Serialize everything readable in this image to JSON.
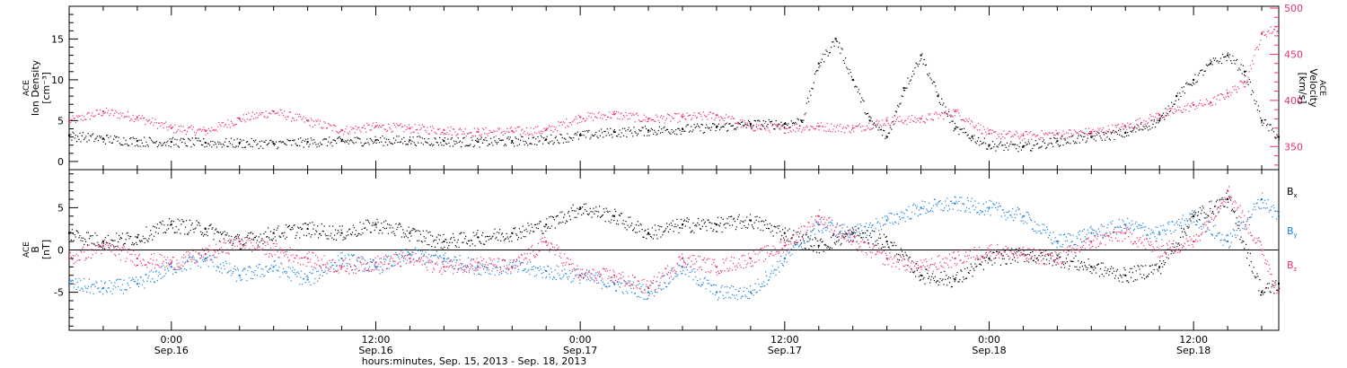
{
  "chart_data": [
    {
      "type": "scatter",
      "panel": "top",
      "ylabel": "ACE Ion Density [cm⁻³]",
      "ylabel_lines": [
        "ACE",
        "Ion Density",
        "[cm⁻³]"
      ],
      "y2label": "ACE Velocity [km/s]",
      "y2label_lines": [
        "ACE",
        "Velocity",
        "[km/s]"
      ],
      "ylim": [
        -1,
        19
      ],
      "yticks": [
        0,
        5,
        10,
        15
      ],
      "y2lim": [
        325,
        502
      ],
      "y2ticks": [
        350,
        400,
        450,
        500
      ],
      "xlim_hours": [
        -6,
        65
      ],
      "colors": {
        "density": "#000000",
        "velocity": "#e8336a"
      },
      "series": [
        {
          "name": "Density",
          "axis": "left",
          "x_hours": [
            -6,
            -4,
            -2,
            0,
            2,
            4,
            6,
            8,
            10,
            12,
            14,
            16,
            18,
            20,
            22,
            24,
            26,
            28,
            30,
            32,
            34,
            36,
            37,
            38,
            39,
            40,
            41,
            42,
            43,
            44,
            45,
            46,
            47,
            48,
            50,
            52,
            54,
            56,
            58,
            59,
            60,
            61,
            62,
            63,
            64,
            65
          ],
          "values": [
            3.2,
            2.8,
            2.5,
            2.4,
            2.3,
            2.3,
            2.2,
            2.4,
            2.5,
            2.6,
            2.6,
            2.5,
            2.4,
            2.5,
            2.7,
            3.2,
            3.6,
            3.8,
            4.0,
            4.2,
            4.6,
            4.6,
            5.0,
            12.0,
            15.0,
            10.0,
            5.0,
            3.0,
            9.0,
            13.0,
            8.0,
            4.0,
            3.0,
            2.0,
            1.8,
            2.5,
            3.0,
            3.5,
            5.0,
            8.0,
            10.0,
            12.0,
            13.0,
            11.0,
            5.0,
            3.0
          ]
        },
        {
          "name": "Velocity",
          "axis": "right",
          "x_hours": [
            -6,
            -4,
            -2,
            0,
            2,
            4,
            6,
            8,
            10,
            12,
            14,
            16,
            18,
            20,
            22,
            24,
            26,
            28,
            30,
            32,
            34,
            36,
            38,
            40,
            42,
            44,
            46,
            48,
            50,
            52,
            54,
            56,
            58,
            60,
            61,
            62,
            63,
            64,
            65
          ],
          "values": [
            378,
            388,
            382,
            370,
            367,
            380,
            388,
            378,
            368,
            372,
            370,
            368,
            366,
            367,
            368,
            382,
            385,
            380,
            382,
            384,
            372,
            370,
            372,
            370,
            378,
            380,
            388,
            364,
            362,
            364,
            366,
            372,
            384,
            395,
            398,
            408,
            420,
            472,
            480
          ]
        }
      ]
    },
    {
      "type": "scatter",
      "panel": "bottom",
      "ylabel": "ACE B [nT]",
      "ylabel_lines": [
        "ACE",
        "B",
        "[nT]"
      ],
      "ylim": [
        -9.5,
        9.5
      ],
      "yticks": [
        -5,
        0,
        5
      ],
      "xlim_hours": [
        -6,
        65
      ],
      "xticks": [
        {
          "hour": 0,
          "time": "0:00",
          "date": "Sep.16"
        },
        {
          "hour": 12,
          "time": "12:00",
          "date": "Sep.16"
        },
        {
          "hour": 24,
          "time": "0:00",
          "date": "Sep.17"
        },
        {
          "hour": 36,
          "time": "12:00",
          "date": "Sep.17"
        },
        {
          "hour": 48,
          "time": "0:00",
          "date": "Sep.18"
        },
        {
          "hour": 60,
          "time": "12:00",
          "date": "Sep.18"
        }
      ],
      "xlabel": "hours:minutes, Sep. 15, 2013 - Sep. 18, 2013",
      "colors": {
        "Bx": "#000000",
        "By": "#1a80d9",
        "Bz": "#e8336a"
      },
      "legend": [
        "Bx",
        "By",
        "Bz"
      ],
      "series": [
        {
          "name": "Bx",
          "x_hours": [
            -6,
            -4,
            -2,
            0,
            2,
            4,
            6,
            8,
            10,
            12,
            14,
            16,
            18,
            20,
            22,
            24,
            26,
            28,
            30,
            32,
            34,
            36,
            38,
            40,
            42,
            44,
            46,
            48,
            50,
            52,
            54,
            56,
            58,
            60,
            62,
            64,
            65
          ],
          "values": [
            2.0,
            1.0,
            1.5,
            3.0,
            2.5,
            1.0,
            2.0,
            2.5,
            2.0,
            3.0,
            2.0,
            1.0,
            1.5,
            2.0,
            3.0,
            5.0,
            4.0,
            2.0,
            3.0,
            3.0,
            3.5,
            2.0,
            0.5,
            2.0,
            1.0,
            -3.0,
            -3.5,
            -1.0,
            -0.5,
            -1.0,
            -2.0,
            -3.0,
            -2.0,
            4.0,
            6.0,
            -5.0,
            -4.0
          ]
        },
        {
          "name": "By",
          "x_hours": [
            -6,
            -4,
            -2,
            0,
            2,
            4,
            6,
            8,
            10,
            12,
            14,
            16,
            18,
            20,
            22,
            24,
            26,
            28,
            30,
            32,
            34,
            36,
            38,
            40,
            42,
            44,
            46,
            48,
            50,
            52,
            54,
            56,
            58,
            60,
            62,
            64,
            65
          ],
          "values": [
            -4.0,
            -4.5,
            -4.0,
            -2.0,
            -1.0,
            -3.0,
            -2.0,
            -3.5,
            -1.0,
            -2.0,
            -0.5,
            -1.0,
            -2.0,
            -2.0,
            -2.5,
            -3.0,
            -4.0,
            -5.0,
            -2.0,
            -5.0,
            -5.0,
            -1.0,
            3.0,
            2.0,
            3.5,
            5.0,
            5.5,
            5.0,
            4.0,
            1.0,
            2.0,
            3.0,
            2.0,
            4.0,
            1.0,
            6.0,
            4.0
          ]
        },
        {
          "name": "Bz",
          "x_hours": [
            -6,
            -4,
            -2,
            0,
            2,
            4,
            6,
            8,
            10,
            12,
            14,
            16,
            18,
            20,
            22,
            24,
            26,
            28,
            30,
            32,
            34,
            36,
            38,
            40,
            42,
            44,
            46,
            48,
            50,
            52,
            54,
            56,
            58,
            60,
            62,
            64,
            65
          ],
          "values": [
            -1.0,
            0.5,
            -1.0,
            -1.5,
            -0.5,
            1.0,
            0.0,
            -1.0,
            -2.0,
            -1.5,
            -1.0,
            -2.0,
            -1.5,
            -2.0,
            1.0,
            -3.0,
            -3.0,
            -4.5,
            -1.0,
            -2.0,
            -1.0,
            0.5,
            4.0,
            1.0,
            -1.0,
            -2.0,
            -1.0,
            0.0,
            -0.5,
            -1.0,
            1.0,
            2.0,
            0.0,
            1.0,
            7.0,
            0.0,
            -5.0
          ]
        }
      ]
    }
  ]
}
